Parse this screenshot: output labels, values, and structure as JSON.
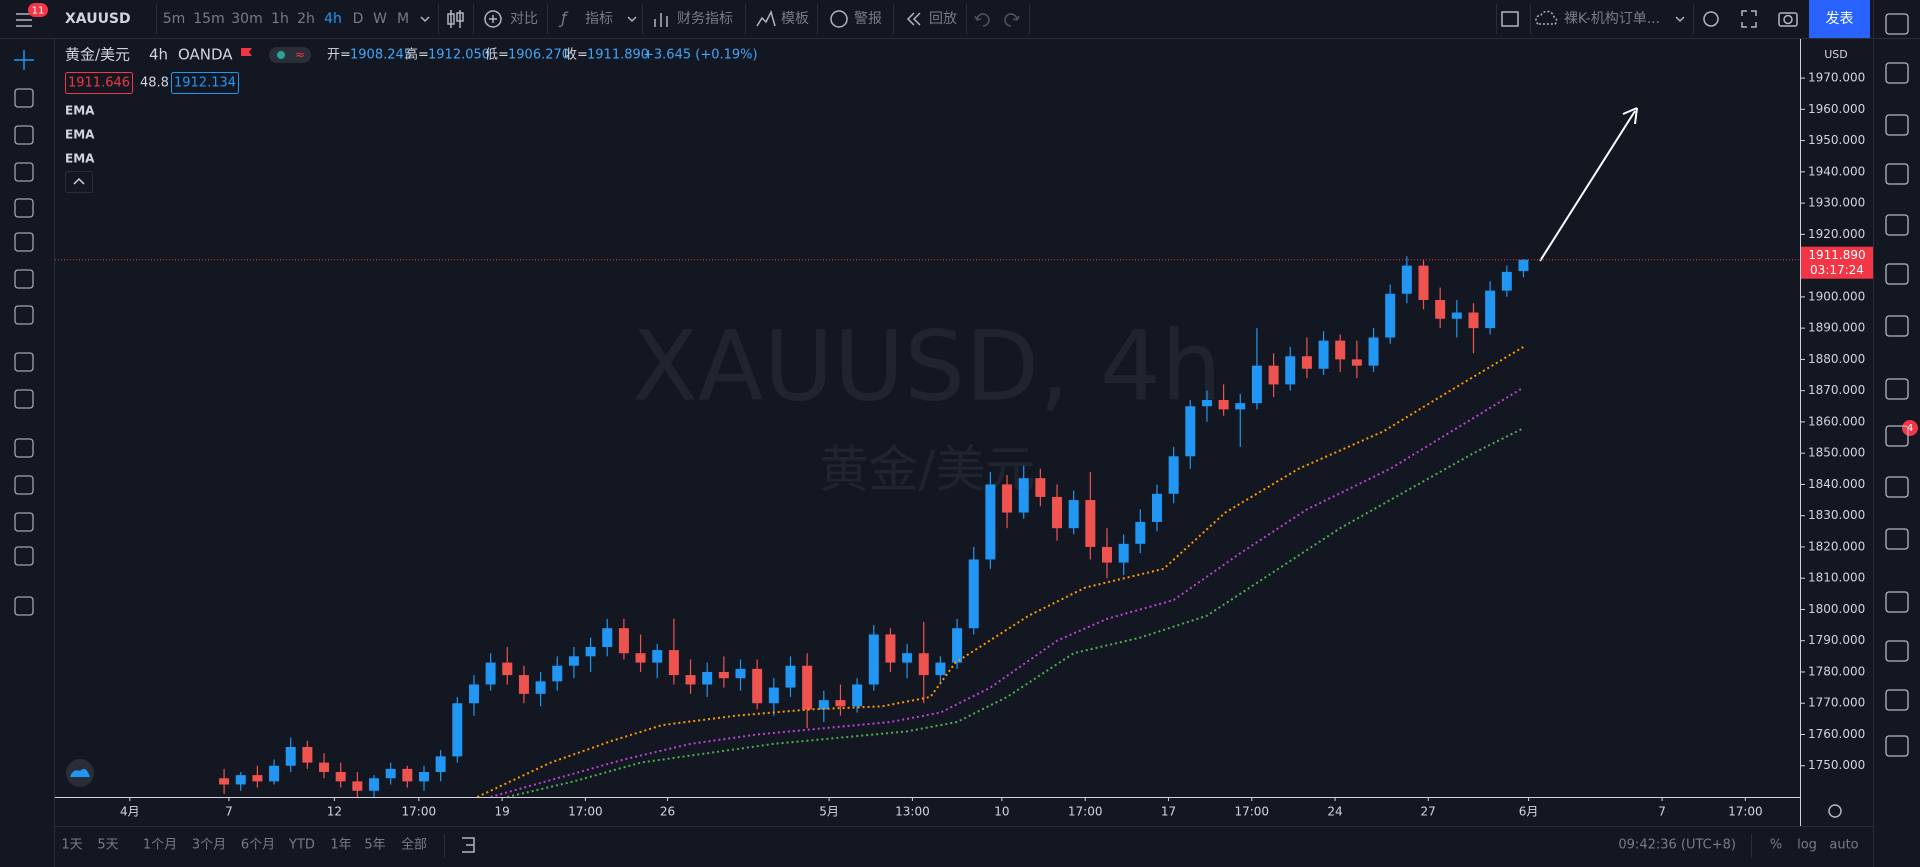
{
  "top_bar": {
    "menu_badge": "11",
    "symbol": "XAUUSD",
    "intervals": [
      "5m",
      "15m",
      "30m",
      "1h",
      "2h",
      "4h",
      "D",
      "W",
      "M"
    ],
    "tools": [
      "对比",
      "指标",
      "财务指标",
      "模板",
      "警报",
      "回放"
    ],
    "layout_name": "裸K-机构订单...",
    "publish": "发表"
  },
  "legend": {
    "symbol_name": "黄金/美元",
    "interval": "4h",
    "exchange": "OANDA",
    "open_label": "开=",
    "open": "1908.245",
    "high_label": "高=",
    "high": "1912.050",
    "low_label": "低=",
    "low": "1906.270",
    "close_label": "收=",
    "close": "1911.890",
    "change": "+3.645 (+0.19%)",
    "bid": "1911.646",
    "spread": "48.8",
    "ask": "1912.134"
  },
  "watermark": {
    "title": "XAUUSD, 4h",
    "subtitle": "黄金/美元"
  },
  "right_bar": {
    "badge": "4"
  },
  "bottom_bar": {
    "ranges": [
      "1天",
      "5天",
      "1个月",
      "3个月",
      "6个月",
      "YTD",
      "1年",
      "5年",
      "全部"
    ],
    "clock": "09:42:36 (UTC+8)",
    "options": [
      "%",
      "log",
      "auto"
    ]
  },
  "chart_data": {
    "type": "candlestick",
    "up_color": "#2196f3",
    "down_color": "#ef5350",
    "grid": false,
    "currency": "USD",
    "xlim": [
      -10.15,
      94.6
    ],
    "ylim": [
      1740,
      1982.5
    ],
    "xticks": [
      {
        "value": -5.66,
        "label": "4月"
      },
      {
        "value": 0.29,
        "label": "7"
      },
      {
        "value": 6.62,
        "label": "12"
      },
      {
        "value": 11.69,
        "label": "17:00"
      },
      {
        "value": 16.69,
        "label": "19"
      },
      {
        "value": 21.69,
        "label": "17:00"
      },
      {
        "value": 26.62,
        "label": "26"
      },
      {
        "value": 36.32,
        "label": "5月"
      },
      {
        "value": 41.32,
        "label": "13:00"
      },
      {
        "value": 46.69,
        "label": "10"
      },
      {
        "value": 51.69,
        "label": "17:00"
      },
      {
        "value": 56.69,
        "label": "17"
      },
      {
        "value": 61.69,
        "label": "17:00"
      },
      {
        "value": 66.69,
        "label": "24"
      },
      {
        "value": 72.28,
        "label": "27"
      },
      {
        "value": 78.31,
        "label": "6月"
      },
      {
        "value": 86.32,
        "label": "7"
      },
      {
        "value": 91.32,
        "label": "17:00"
      }
    ],
    "yticks": [
      {
        "value": 1750,
        "label": "1750.000"
      },
      {
        "value": 1760,
        "label": "1760.000"
      },
      {
        "value": 1770,
        "label": "1770.000"
      },
      {
        "value": 1780,
        "label": "1780.000"
      },
      {
        "value": 1790,
        "label": "1790.000"
      },
      {
        "value": 1800,
        "label": "1800.000"
      },
      {
        "value": 1810,
        "label": "1810.000"
      },
      {
        "value": 1820,
        "label": "1820.000"
      },
      {
        "value": 1830,
        "label": "1830.000"
      },
      {
        "value": 1840,
        "label": "1840.000"
      },
      {
        "value": 1850,
        "label": "1850.000"
      },
      {
        "value": 1860,
        "label": "1860.000"
      },
      {
        "value": 1870,
        "label": "1870.000"
      },
      {
        "value": 1880,
        "label": "1880.000"
      },
      {
        "value": 1890,
        "label": "1890.000"
      },
      {
        "value": 1900,
        "label": "1900.000"
      },
      {
        "value": 1910,
        "label": "1910.000"
      },
      {
        "value": 1920,
        "label": "1920.000"
      },
      {
        "value": 1930,
        "label": "1930.000"
      },
      {
        "value": 1940,
        "label": "1940.000"
      },
      {
        "value": 1950,
        "label": "1950.000"
      },
      {
        "value": 1960,
        "label": "1960.000"
      },
      {
        "value": 1970,
        "label": "1970.000"
      }
    ],
    "last_price": {
      "value": 1911.89,
      "label": "1911.890",
      "countdown": "03:17:24",
      "color": "#f23645"
    },
    "ohlc": {
      "x": [
        0,
        1,
        2,
        3,
        4,
        5,
        6,
        7,
        8,
        9,
        10,
        11,
        12,
        13,
        14,
        15,
        16,
        17,
        18,
        19,
        20,
        21,
        22,
        23,
        24,
        25,
        26,
        27,
        28,
        29,
        30,
        31,
        32,
        33,
        34,
        35,
        36,
        37,
        38,
        39,
        40,
        41,
        42,
        43,
        44,
        45,
        46,
        47,
        48,
        49,
        50,
        51,
        52,
        53,
        54,
        55,
        56,
        57,
        58,
        59,
        60,
        61,
        62,
        63,
        64,
        65,
        66,
        67,
        68,
        69,
        70,
        71,
        72,
        73,
        74,
        75,
        76,
        77,
        78
      ],
      "open": [
        1746,
        1744,
        1747,
        1745,
        1750,
        1756,
        1751,
        1748,
        1745,
        1742,
        1746,
        1749,
        1745,
        1748,
        1753,
        1770,
        1776,
        1783,
        1779,
        1773,
        1777,
        1782,
        1785,
        1788,
        1794,
        1786,
        1783,
        1787,
        1779,
        1776,
        1780,
        1778,
        1781,
        1770,
        1775,
        1782,
        1768,
        1771,
        1769,
        1776,
        1792,
        1783,
        1786,
        1779,
        1783,
        1794,
        1816,
        1840,
        1831,
        1842,
        1836,
        1826,
        1835,
        1820,
        1815,
        1821,
        1828,
        1837,
        1849,
        1865,
        1867,
        1864,
        1866,
        1878,
        1872,
        1881,
        1877,
        1886,
        1880,
        1878,
        1887,
        1901,
        1910,
        1899,
        1893,
        1895,
        1890,
        1902,
        1908.245
      ],
      "high": [
        1749,
        1748,
        1750,
        1752,
        1759,
        1758,
        1754,
        1751,
        1748,
        1747,
        1751,
        1750,
        1750,
        1755,
        1772,
        1779,
        1786,
        1788,
        1782,
        1780,
        1785,
        1788,
        1791,
        1797,
        1797,
        1792,
        1789,
        1797,
        1784,
        1783,
        1785,
        1784,
        1784,
        1778,
        1785,
        1786,
        1774,
        1776,
        1778,
        1795,
        1794,
        1789,
        1796,
        1785,
        1797,
        1820,
        1844,
        1843,
        1846,
        1845,
        1840,
        1838,
        1844,
        1826,
        1824,
        1832,
        1840,
        1852,
        1867,
        1870,
        1872,
        1869,
        1890,
        1882,
        1884,
        1887,
        1889,
        1888,
        1886,
        1890,
        1904,
        1913,
        1912,
        1903,
        1899,
        1898,
        1905,
        1910,
        1912.05
      ],
      "low": [
        1741,
        1742,
        1743,
        1744,
        1748,
        1749,
        1746,
        1743,
        1740,
        1740,
        1744,
        1743,
        1742,
        1745,
        1751,
        1766,
        1774,
        1776,
        1770,
        1769,
        1774,
        1778,
        1780,
        1785,
        1784,
        1780,
        1778,
        1776,
        1773,
        1772,
        1775,
        1774,
        1768,
        1766,
        1772,
        1762,
        1764,
        1766,
        1767,
        1774,
        1780,
        1778,
        1770,
        1776,
        1781,
        1792,
        1813,
        1826,
        1829,
        1833,
        1822,
        1824,
        1816,
        1810,
        1811,
        1818,
        1825,
        1834,
        1845,
        1860,
        1862,
        1852,
        1864,
        1868,
        1870,
        1874,
        1875,
        1876,
        1874,
        1876,
        1885,
        1898,
        1896,
        1890,
        1887,
        1882,
        1888,
        1900,
        1906.27
      ],
      "close": [
        1744,
        1747,
        1745,
        1750,
        1756,
        1751,
        1748,
        1745,
        1742,
        1746,
        1749,
        1745,
        1748,
        1753,
        1770,
        1776,
        1783,
        1779,
        1773,
        1777,
        1782,
        1785,
        1788,
        1794,
        1786,
        1783,
        1787,
        1779,
        1776,
        1780,
        1778,
        1781,
        1770,
        1775,
        1782,
        1768,
        1771,
        1769,
        1776,
        1792,
        1783,
        1786,
        1779,
        1783,
        1794,
        1816,
        1840,
        1831,
        1842,
        1836,
        1826,
        1835,
        1820,
        1815,
        1821,
        1828,
        1837,
        1849,
        1865,
        1867,
        1864,
        1866,
        1878,
        1872,
        1881,
        1877,
        1886,
        1880,
        1878,
        1887,
        1901,
        1910,
        1899,
        1893,
        1895,
        1890,
        1902,
        1908,
        1911.89
      ]
    },
    "overlays": [
      {
        "name": "EMA",
        "color": "#ff9800",
        "x": [
          15.2,
          19.6,
          23.3,
          26.3,
          30.7,
          35.1,
          39.5,
          42.4,
          43.9,
          48.3,
          51.7,
          56.4,
          60.1,
          64.5,
          69.6,
          73.3,
          78
        ],
        "values": [
          1740,
          1751,
          1758,
          1763,
          1766,
          1768,
          1769,
          1772,
          1783,
          1798,
          1807,
          1813,
          1831,
          1845,
          1857,
          1869,
          1884
        ]
      },
      {
        "name": "EMA",
        "color": "#c040d8",
        "x": [
          16,
          20,
          24,
          28,
          32,
          36,
          40,
          43,
          46,
          50,
          53,
          57,
          61,
          65,
          70,
          74,
          78
        ],
        "values": [
          1740,
          1746,
          1752,
          1757,
          1760,
          1762,
          1764,
          1767,
          1775,
          1790,
          1797,
          1803,
          1818,
          1832,
          1845,
          1858,
          1871
        ]
      },
      {
        "name": "EMA",
        "color": "#4caf50",
        "x": [
          17,
          21,
          25,
          29,
          33,
          37,
          41,
          44,
          47,
          51,
          55,
          59,
          63,
          67,
          71,
          75,
          78
        ],
        "values": [
          1740,
          1745,
          1751,
          1754,
          1757,
          1759,
          1761,
          1764,
          1772,
          1786,
          1791,
          1798,
          1812,
          1826,
          1838,
          1850,
          1858
        ]
      }
    ]
  }
}
